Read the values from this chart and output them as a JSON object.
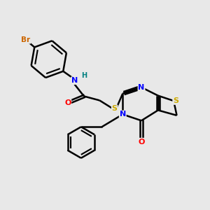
{
  "bg_color": "#e8e8e8",
  "atom_colors": {
    "C": "#000000",
    "N": "#0000ff",
    "O": "#ff0000",
    "S": "#ccaa00",
    "Br": "#cc6600",
    "H": "#008080"
  },
  "bond_color": "#000000",
  "bond_width": 1.8,
  "fig_width": 3.0,
  "fig_height": 3.0,
  "dpi": 100
}
